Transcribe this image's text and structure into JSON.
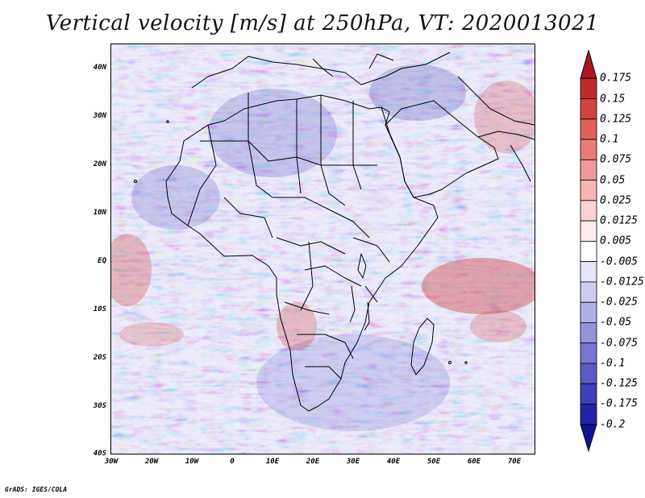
{
  "title": "Vertical velocity [m/s] at 250hPa, VT: 2020013021",
  "footer": "GrADS: IGES/COLA",
  "map": {
    "variable": "Vertical velocity",
    "units": "m/s",
    "level": "250hPa",
    "valid_time": "2020013021",
    "lon_ticks": [
      "30W",
      "20W",
      "10W",
      "0",
      "10E",
      "20E",
      "30E",
      "40E",
      "50E",
      "60E",
      "70E"
    ],
    "lat_ticks": [
      "40N",
      "30N",
      "20N",
      "10N",
      "EQ",
      "10S",
      "20S",
      "30S",
      "40S"
    ]
  },
  "colorbar": {
    "levels": [
      "0.175",
      "0.15",
      "0.125",
      "0.1",
      "0.075",
      "0.05",
      "0.025",
      "0.0125",
      "0.005",
      "-0.005",
      "-0.0125",
      "-0.025",
      "-0.05",
      "-0.075",
      "-0.1",
      "-0.125",
      "-0.175",
      "-0.2"
    ],
    "colors": [
      "#a8161e",
      "#c02a2e",
      "#d2433e",
      "#e0605a",
      "#e97c77",
      "#f0999a",
      "#f6b4b4",
      "#fad0d0",
      "#fdeaea",
      "#ffffff",
      "#e6e6f8",
      "#ccccf0",
      "#b0b0e8",
      "#9494dc",
      "#7777d0",
      "#5b5bc4",
      "#3f3fb8",
      "#2424a8",
      "#12128f"
    ]
  },
  "colors": {
    "background": "#eef0fa",
    "coast": "#000000"
  }
}
